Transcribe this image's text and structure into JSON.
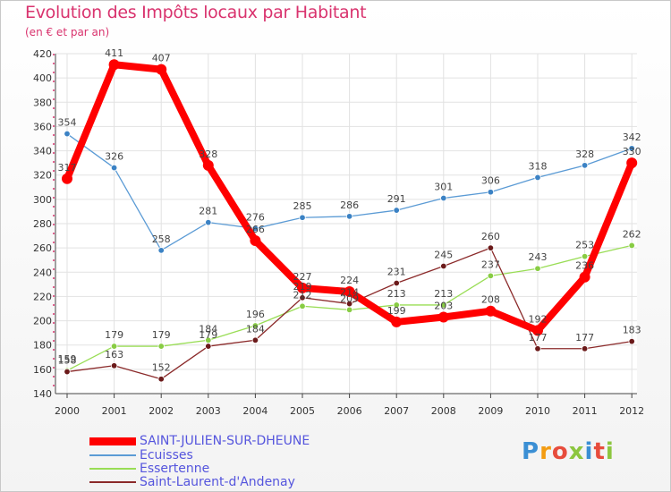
{
  "title": "Evolution des Impôts locaux par Habitant",
  "subtitle": "(en € et par an)",
  "logo": {
    "text": "Proxiti",
    "colors": [
      "#3b8fd4",
      "#f39c12",
      "#e74c3c",
      "#8cc63f",
      "#3b8fd4",
      "#e74c3c",
      "#8cc63f"
    ]
  },
  "chart_data": {
    "type": "line",
    "title": "Evolution des Impôts locaux par Habitant",
    "subtitle": "(en € et par an)",
    "x": [
      "2000",
      "2001",
      "2002",
      "2003",
      "2004",
      "2005",
      "2006",
      "2007",
      "2008",
      "2009",
      "2010",
      "2011",
      "2012"
    ],
    "ylim": [
      140,
      420
    ],
    "yticks": [
      140,
      160,
      180,
      200,
      220,
      240,
      260,
      280,
      300,
      320,
      340,
      360,
      380,
      400,
      420
    ],
    "grid": true,
    "legend_position": "bottom-left",
    "series": [
      {
        "name": "SAINT-JULIEN-SUR-DHEUNE",
        "color": "#ff0000",
        "width": 8,
        "values": [
          317,
          411,
          407,
          328,
          266,
          227,
          224,
          199,
          203,
          208,
          192,
          236,
          330
        ],
        "labels": [
          "317",
          "411",
          "407",
          "328",
          "266",
          "227",
          "224",
          "199",
          "203",
          "208",
          "192",
          "236",
          "330"
        ]
      },
      {
        "name": "Ecuisses",
        "color": "#5b9bd5",
        "width": 1.3,
        "values": [
          354,
          326,
          258,
          281,
          276,
          285,
          286,
          291,
          301,
          306,
          318,
          328,
          342
        ],
        "labels": [
          "354",
          "326",
          "258",
          "281",
          "276",
          "285",
          "286",
          "291",
          "301",
          "306",
          "318",
          "328",
          "342"
        ]
      },
      {
        "name": "Essertenne",
        "color": "#99dd55",
        "width": 1.3,
        "values": [
          159,
          179,
          179,
          184,
          196,
          212,
          209,
          213,
          213,
          237,
          243,
          253,
          262
        ],
        "labels": [
          "159",
          "179",
          "179",
          "184",
          "196",
          "212",
          "209",
          "213",
          "213",
          "237",
          "243",
          "253",
          "262"
        ]
      },
      {
        "name": "Saint-Laurent-d'Andenay",
        "color": "#8b2a2a",
        "width": 1.3,
        "values": [
          158,
          163,
          152,
          179,
          184,
          219,
          214,
          231,
          245,
          260,
          177,
          177,
          183
        ],
        "labels": [
          "158",
          "163",
          "152",
          "179",
          "184",
          "219",
          "214",
          "231",
          "245",
          "260",
          "177",
          "177",
          "183"
        ]
      }
    ]
  }
}
